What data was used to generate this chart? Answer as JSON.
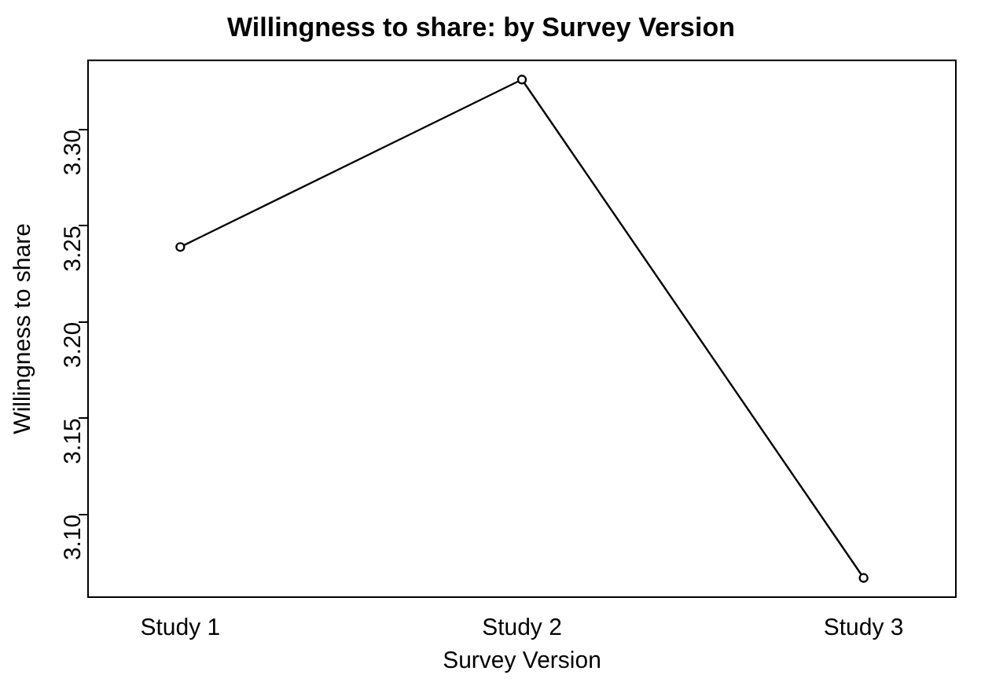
{
  "chart_data": {
    "type": "line",
    "title": "Willingness to share: by Survey Version",
    "xlabel": "Survey Version",
    "ylabel": "Willingness to share",
    "categories": [
      "Study 1",
      "Study 2",
      "Study 3"
    ],
    "series": [
      {
        "color": "#000000",
        "values": [
          3.239,
          3.326,
          3.067
        ]
      }
    ],
    "ylim": [
      3.057,
      3.336
    ],
    "yticks": [
      {
        "value": 3.1,
        "label": "3.10"
      },
      {
        "value": 3.15,
        "label": "3.15"
      },
      {
        "value": 3.2,
        "label": "3.20"
      },
      {
        "value": 3.25,
        "label": "3.25"
      },
      {
        "value": 3.3,
        "label": "3.30"
      }
    ],
    "marker": "circle",
    "grid": false,
    "legend": false
  }
}
